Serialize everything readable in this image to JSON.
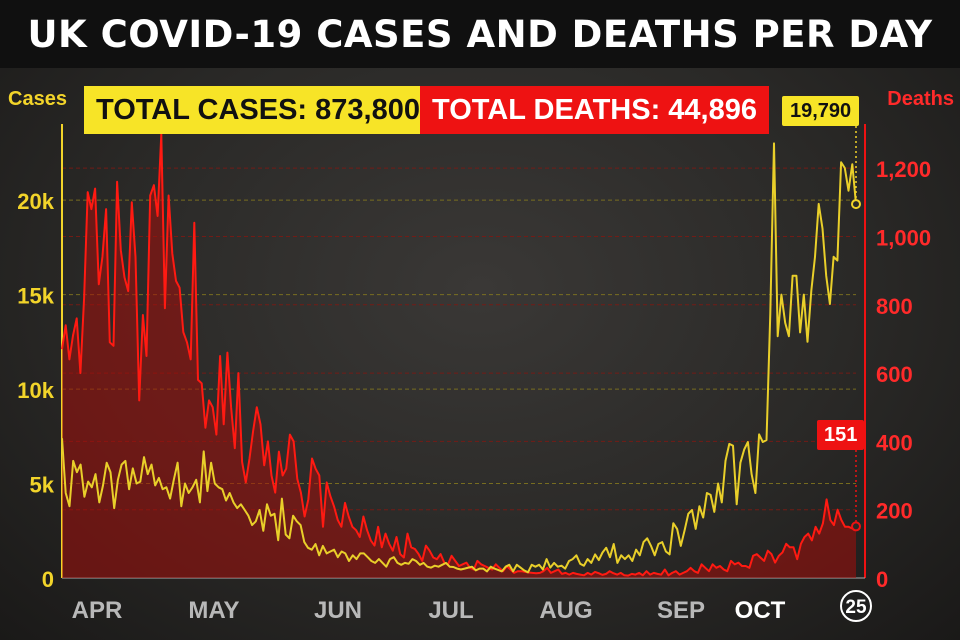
{
  "title": "UK COVID-19 CASES AND DEATHS PER DAY",
  "colors": {
    "cases": "#f2d42a",
    "deaths": "#ee1212",
    "background": "#2b2a28"
  },
  "chart_data": {
    "type": "line",
    "title": "UK COVID-19 CASES AND DEATHS PER DAY",
    "x_tick_labels": [
      "APR",
      "MAY",
      "JUN",
      "JUL",
      "AUG",
      "SEP",
      "OCT",
      "25"
    ],
    "y_left": {
      "label": "Cases",
      "range": [
        0,
        23500
      ],
      "ticks": [
        0,
        5000,
        10000,
        15000,
        20000
      ],
      "tick_labels": [
        "0",
        "5k",
        "10k",
        "15k",
        "20k"
      ]
    },
    "y_right": {
      "label": "Deaths",
      "range": [
        0,
        1300
      ],
      "ticks": [
        0,
        200,
        400,
        600,
        800,
        1000,
        1200
      ],
      "tick_labels": [
        "0",
        "200",
        "400",
        "600",
        "800",
        "1,000",
        "1,200"
      ]
    },
    "summary": {
      "total_cases_label": "TOTAL CASES:",
      "total_cases": "873,800",
      "total_deaths_label": "TOTAL DEATHS:",
      "total_deaths": "44,896"
    },
    "latest": {
      "cases": "19,790",
      "deaths": "151"
    },
    "series": [
      {
        "axis": "left",
        "color": "#f2d42a",
        "values": [
          7400,
          4500,
          3800,
          6200,
          5600,
          6000,
          4300,
          5100,
          4800,
          5500,
          4000,
          4900,
          6100,
          5600,
          3700,
          5200,
          6000,
          6200,
          4700,
          5800,
          5000,
          5100,
          6400,
          5500,
          6000,
          4900,
          5300,
          4700,
          4800,
          4200,
          5200,
          6100,
          3800,
          5000,
          4500,
          4800,
          5200,
          4000,
          6700,
          4600,
          6100,
          5000,
          4800,
          4700,
          4100,
          4500,
          4000,
          3700,
          3900,
          3600,
          3300,
          2800,
          3000,
          3600,
          2500,
          3900,
          3300,
          3400,
          2000,
          4200,
          2300,
          2100,
          3300,
          3000,
          2800,
          1900,
          1600,
          1500,
          1800,
          1200,
          1700,
          1300,
          1400,
          1500,
          1100,
          1400,
          1300,
          900,
          1200,
          1000,
          1300,
          1300,
          1100,
          900,
          800,
          1000,
          800,
          600,
          1000,
          1100,
          800,
          700,
          800,
          750,
          1000,
          900,
          700,
          800,
          600,
          550,
          650,
          600,
          700,
          800,
          600,
          580,
          500,
          450,
          500,
          550,
          600,
          400,
          500,
          500,
          350,
          600,
          500,
          430,
          350,
          600,
          700,
          350,
          700,
          550,
          400,
          300,
          700,
          600,
          700,
          450,
          1000,
          550,
          800,
          600,
          650,
          500,
          900,
          1000,
          1200,
          750,
          650,
          1000,
          800,
          1250,
          950,
          1350,
          1600,
          1100,
          1800,
          800,
          1200,
          1000,
          1200,
          900,
          1500,
          1200,
          1900,
          2100,
          1700,
          1200,
          1800,
          1900,
          1400,
          1250,
          2900,
          2600,
          1700,
          2500,
          3400,
          3600,
          2600,
          3800,
          3200,
          4500,
          4400,
          3500,
          5000,
          4000,
          6200,
          7100,
          7000,
          3900,
          6100,
          6800,
          7200,
          5500,
          4500,
          7600,
          7200,
          7300,
          14000,
          23000,
          12800,
          15000,
          13500,
          12800,
          16000,
          16000,
          13000,
          15000,
          12500,
          15200,
          17000,
          19800,
          18500,
          16000,
          14500,
          17000,
          16800,
          22000,
          21700,
          20500,
          21900,
          19790
        ]
      },
      {
        "axis": "right",
        "color": "#ee1212",
        "values": [
          670,
          740,
          640,
          710,
          760,
          600,
          820,
          1130,
          1080,
          1140,
          860,
          940,
          1080,
          690,
          680,
          1160,
          960,
          880,
          840,
          1100,
          940,
          520,
          770,
          650,
          1120,
          1150,
          1060,
          1300,
          790,
          1120,
          950,
          870,
          850,
          720,
          690,
          640,
          1040,
          580,
          570,
          440,
          520,
          500,
          420,
          650,
          450,
          660,
          500,
          380,
          600,
          340,
          280,
          350,
          430,
          500,
          450,
          330,
          400,
          300,
          250,
          370,
          300,
          320,
          420,
          400,
          290,
          250,
          180,
          230,
          350,
          320,
          300,
          150,
          280,
          240,
          210,
          170,
          150,
          220,
          180,
          150,
          140,
          120,
          180,
          140,
          110,
          95,
          150,
          90,
          130,
          100,
          80,
          120,
          70,
          60,
          130,
          90,
          85,
          70,
          50,
          95,
          80,
          60,
          55,
          70,
          45,
          40,
          65,
          50,
          35,
          40,
          45,
          30,
          25,
          50,
          40,
          35,
          30,
          25,
          40,
          30,
          20,
          35,
          25,
          15,
          20,
          20,
          18,
          16,
          15,
          14,
          15,
          20,
          30,
          15,
          20,
          25,
          12,
          15,
          10,
          15,
          12,
          10,
          8,
          15,
          10,
          18,
          14,
          9,
          12,
          20,
          14,
          10,
          15,
          8,
          7,
          12,
          10,
          15,
          8,
          20,
          10,
          15,
          12,
          10,
          25,
          8,
          15,
          20,
          10,
          15,
          20,
          30,
          20,
          15,
          40,
          30,
          20,
          40,
          30,
          35,
          25,
          20,
          50,
          40,
          45,
          35,
          35,
          30,
          65,
          70,
          60,
          50,
          80,
          70,
          45,
          65,
          75,
          100,
          90,
          90,
          55,
          100,
          120,
          130,
          110,
          150,
          130,
          160,
          230,
          170,
          155,
          200,
          170,
          150,
          150,
          145,
          151
        ]
      }
    ]
  }
}
